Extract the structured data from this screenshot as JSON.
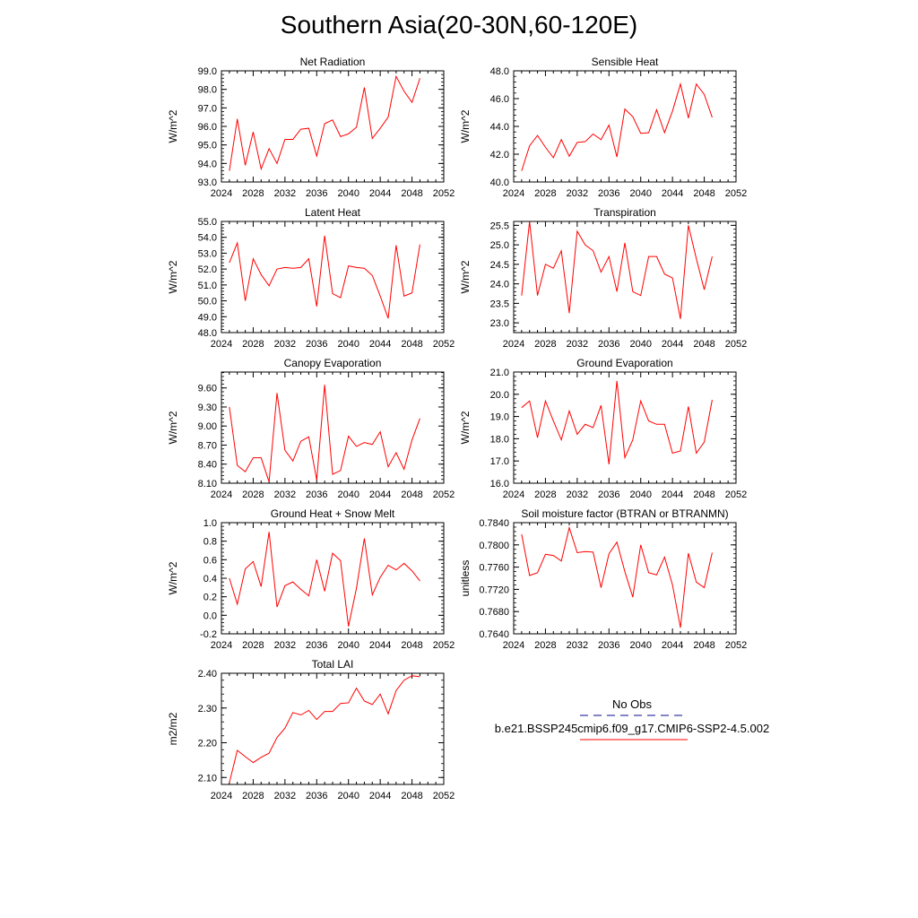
{
  "page": {
    "title": "Southern Asia(20-30N,60-120E)"
  },
  "legend": {
    "items": [
      {
        "label": "No Obs",
        "color": "#3a3aa8",
        "style": "dashed"
      },
      {
        "label": "b.e21.BSSP245cmip6.f09_g17.CMIP6-SSP2-4.5.002",
        "color": "#ff0000",
        "style": "solid"
      }
    ]
  },
  "chart_data": [
    {
      "type": "line",
      "title": "Net Radiation",
      "ylabel": "W/m^2",
      "xlim": [
        2024,
        2052
      ],
      "ylim": [
        93.0,
        99.0
      ],
      "xticks": [
        "2024",
        "2028",
        "2032",
        "2036",
        "2040",
        "2044",
        "2048",
        "2052"
      ],
      "yticks": [
        "93.0",
        "94.0",
        "95.0",
        "96.0",
        "97.0",
        "98.0",
        "99.0"
      ],
      "x": [
        2025,
        2026,
        2027,
        2028,
        2029,
        2030,
        2031,
        2032,
        2033,
        2034,
        2035,
        2036,
        2037,
        2038,
        2039,
        2040,
        2041,
        2042,
        2043,
        2044,
        2045,
        2046,
        2047,
        2048,
        2049
      ],
      "series": [
        {
          "color": "#ff0000",
          "values": [
            93.6,
            96.4,
            93.9,
            95.7,
            93.7,
            94.8,
            94.0,
            95.3,
            95.3,
            95.85,
            95.9,
            94.4,
            96.15,
            96.35,
            95.45,
            95.6,
            95.95,
            98.1,
            95.35,
            95.9,
            96.5,
            98.7,
            97.9,
            97.3,
            98.6
          ]
        }
      ]
    },
    {
      "type": "line",
      "title": "Sensible Heat",
      "ylabel": "W/m^2",
      "xlim": [
        2024,
        2052
      ],
      "ylim": [
        40.0,
        48.0
      ],
      "xticks": [
        "2024",
        "2028",
        "2032",
        "2036",
        "2040",
        "2044",
        "2048",
        "2052"
      ],
      "yticks": [
        "40.0",
        "42.0",
        "44.0",
        "46.0",
        "48.0"
      ],
      "x": [
        2025,
        2026,
        2027,
        2028,
        2029,
        2030,
        2031,
        2032,
        2033,
        2034,
        2035,
        2036,
        2037,
        2038,
        2039,
        2040,
        2041,
        2042,
        2043,
        2044,
        2045,
        2046,
        2047,
        2048,
        2049
      ],
      "series": [
        {
          "color": "#ff0000",
          "values": [
            40.8,
            42.6,
            43.35,
            42.5,
            41.75,
            43.05,
            41.85,
            42.85,
            42.9,
            43.45,
            43.05,
            44.1,
            41.8,
            45.25,
            44.7,
            43.5,
            43.55,
            45.2,
            43.55,
            45.1,
            47.05,
            44.6,
            47.05,
            46.3,
            44.65
          ]
        }
      ]
    },
    {
      "type": "line",
      "title": "Latent Heat",
      "ylabel": "W/m^2",
      "xlim": [
        2024,
        2052
      ],
      "ylim": [
        48.0,
        55.0
      ],
      "xticks": [
        "2024",
        "2028",
        "2032",
        "2036",
        "2040",
        "2044",
        "2048",
        "2052"
      ],
      "yticks": [
        "48.0",
        "49.0",
        "50.0",
        "51.0",
        "52.0",
        "53.0",
        "54.0",
        "55.0"
      ],
      "x": [
        2025,
        2026,
        2027,
        2028,
        2029,
        2030,
        2031,
        2032,
        2033,
        2034,
        2035,
        2036,
        2037,
        2038,
        2039,
        2040,
        2041,
        2042,
        2043,
        2044,
        2045,
        2046,
        2047,
        2048,
        2049
      ],
      "series": [
        {
          "color": "#ff0000",
          "values": [
            52.4,
            53.65,
            50.0,
            52.65,
            51.65,
            50.95,
            52.0,
            52.1,
            52.05,
            52.1,
            52.65,
            49.65,
            54.1,
            50.45,
            50.2,
            52.2,
            52.1,
            52.05,
            51.6,
            50.3,
            48.9,
            53.5,
            50.3,
            50.5,
            53.55
          ]
        }
      ]
    },
    {
      "type": "line",
      "title": "Transpiration",
      "ylabel": "W/m^2",
      "xlim": [
        2024,
        2052
      ],
      "ylim": [
        22.75,
        25.6
      ],
      "xticks": [
        "2024",
        "2028",
        "2032",
        "2036",
        "2040",
        "2044",
        "2048",
        "2052"
      ],
      "yticks": [
        "23.0",
        "23.5",
        "24.0",
        "24.5",
        "25.0",
        "25.5"
      ],
      "x": [
        2025,
        2026,
        2027,
        2028,
        2029,
        2030,
        2031,
        2032,
        2033,
        2034,
        2035,
        2036,
        2037,
        2038,
        2039,
        2040,
        2041,
        2042,
        2043,
        2044,
        2045,
        2046,
        2047,
        2048,
        2049
      ],
      "series": [
        {
          "color": "#ff0000",
          "values": [
            23.7,
            25.6,
            23.7,
            24.5,
            24.4,
            24.85,
            23.25,
            25.35,
            25.0,
            24.85,
            24.3,
            24.7,
            23.8,
            25.05,
            23.8,
            23.7,
            24.7,
            24.7,
            24.25,
            24.15,
            23.1,
            25.5,
            24.65,
            23.85,
            24.7
          ]
        }
      ]
    },
    {
      "type": "line",
      "title": "Canopy Evaporation",
      "ylabel": "W/m^2",
      "xlim": [
        2024,
        2052
      ],
      "ylim": [
        8.1,
        9.85
      ],
      "xticks": [
        "2024",
        "2028",
        "2032",
        "2036",
        "2040",
        "2044",
        "2048",
        "2052"
      ],
      "yticks": [
        "8.10",
        "8.40",
        "8.70",
        "9.00",
        "9.30",
        "9.60"
      ],
      "x": [
        2025,
        2026,
        2027,
        2028,
        2029,
        2030,
        2031,
        2032,
        2033,
        2034,
        2035,
        2036,
        2037,
        2038,
        2039,
        2040,
        2041,
        2042,
        2043,
        2044,
        2045,
        2046,
        2047,
        2048,
        2049
      ],
      "series": [
        {
          "color": "#ff0000",
          "values": [
            9.3,
            8.38,
            8.28,
            8.5,
            8.5,
            8.12,
            9.52,
            8.62,
            8.45,
            8.76,
            8.83,
            8.15,
            9.65,
            8.24,
            8.3,
            8.84,
            8.68,
            8.74,
            8.71,
            8.91,
            8.36,
            8.58,
            8.32,
            8.78,
            9.12
          ]
        }
      ]
    },
    {
      "type": "line",
      "title": "Ground Evaporation",
      "ylabel": "W/m^2",
      "xlim": [
        2024,
        2052
      ],
      "ylim": [
        16.0,
        21.0
      ],
      "xticks": [
        "2024",
        "2028",
        "2032",
        "2036",
        "2040",
        "2044",
        "2048",
        "2052"
      ],
      "yticks": [
        "16.0",
        "17.0",
        "18.0",
        "19.0",
        "20.0",
        "21.0"
      ],
      "x": [
        2025,
        2026,
        2027,
        2028,
        2029,
        2030,
        2031,
        2032,
        2033,
        2034,
        2035,
        2036,
        2037,
        2038,
        2039,
        2040,
        2041,
        2042,
        2043,
        2044,
        2045,
        2046,
        2047,
        2048,
        2049
      ],
      "series": [
        {
          "color": "#ff0000",
          "values": [
            19.4,
            19.7,
            18.05,
            19.7,
            18.8,
            17.95,
            19.25,
            18.2,
            18.65,
            18.5,
            19.5,
            16.85,
            20.6,
            17.15,
            17.95,
            19.7,
            18.8,
            18.65,
            18.65,
            17.35,
            17.45,
            19.45,
            17.35,
            17.85,
            19.75
          ]
        }
      ]
    },
    {
      "type": "line",
      "title": "Ground Heat + Snow Melt",
      "ylabel": "W/m^2",
      "xlim": [
        2024,
        2052
      ],
      "ylim": [
        -0.2,
        1.0
      ],
      "xticks": [
        "2024",
        "2028",
        "2032",
        "2036",
        "2040",
        "2044",
        "2048",
        "2052"
      ],
      "yticks": [
        "-0.2",
        "0.0",
        "0.2",
        "0.4",
        "0.6",
        "0.8",
        "1.0"
      ],
      "x": [
        2025,
        2026,
        2027,
        2028,
        2029,
        2030,
        2031,
        2032,
        2033,
        2034,
        2035,
        2036,
        2037,
        2038,
        2039,
        2040,
        2041,
        2042,
        2043,
        2044,
        2045,
        2046,
        2047,
        2048,
        2049
      ],
      "series": [
        {
          "color": "#ff0000",
          "values": [
            0.4,
            0.12,
            0.5,
            0.58,
            0.31,
            0.9,
            0.09,
            0.32,
            0.36,
            0.28,
            0.21,
            0.6,
            0.26,
            0.67,
            0.59,
            -0.12,
            0.29,
            0.83,
            0.22,
            0.41,
            0.54,
            0.49,
            0.56,
            0.48,
            0.37
          ]
        }
      ]
    },
    {
      "type": "line",
      "title": "Soil moisture factor (BTRAN or BTRANMN)",
      "ylabel": "unitless",
      "xlim": [
        2024,
        2052
      ],
      "ylim": [
        0.764,
        0.784
      ],
      "xticks": [
        "2024",
        "2028",
        "2032",
        "2036",
        "2040",
        "2044",
        "2048",
        "2052"
      ],
      "yticks": [
        "0.7640",
        "0.7680",
        "0.7720",
        "0.7760",
        "0.7800",
        "0.7840"
      ],
      "x": [
        2025,
        2026,
        2027,
        2028,
        2029,
        2030,
        2031,
        2032,
        2033,
        2034,
        2035,
        2036,
        2037,
        2038,
        2039,
        2040,
        2041,
        2042,
        2043,
        2044,
        2045,
        2046,
        2047,
        2048,
        2049
      ],
      "series": [
        {
          "color": "#ff0000",
          "values": [
            0.7819,
            0.7745,
            0.775,
            0.7783,
            0.7781,
            0.7771,
            0.7831,
            0.7786,
            0.7788,
            0.7787,
            0.7723,
            0.7784,
            0.7805,
            0.7752,
            0.7706,
            0.78,
            0.775,
            0.7746,
            0.7778,
            0.7728,
            0.7651,
            0.7785,
            0.7733,
            0.7723,
            0.7786
          ]
        }
      ]
    },
    {
      "type": "line",
      "title": "Total LAI",
      "ylabel": "m2/m2",
      "xlim": [
        2024,
        2052
      ],
      "ylim": [
        2.08,
        2.4
      ],
      "xticks": [
        "2024",
        "2028",
        "2032",
        "2036",
        "2040",
        "2044",
        "2048",
        "2052"
      ],
      "yticks": [
        "2.10",
        "2.20",
        "2.30",
        "2.40"
      ],
      "x": [
        2025,
        2026,
        2027,
        2028,
        2029,
        2030,
        2031,
        2032,
        2033,
        2034,
        2035,
        2036,
        2037,
        2038,
        2039,
        2040,
        2041,
        2042,
        2043,
        2044,
        2045,
        2046,
        2047,
        2048,
        2049
      ],
      "series": [
        {
          "color": "#ff0000",
          "values": [
            2.085,
            2.178,
            2.16,
            2.143,
            2.158,
            2.17,
            2.215,
            2.242,
            2.287,
            2.28,
            2.293,
            2.267,
            2.29,
            2.29,
            2.313,
            2.315,
            2.357,
            2.32,
            2.31,
            2.34,
            2.283,
            2.35,
            2.38,
            2.393,
            2.39
          ]
        }
      ]
    }
  ]
}
